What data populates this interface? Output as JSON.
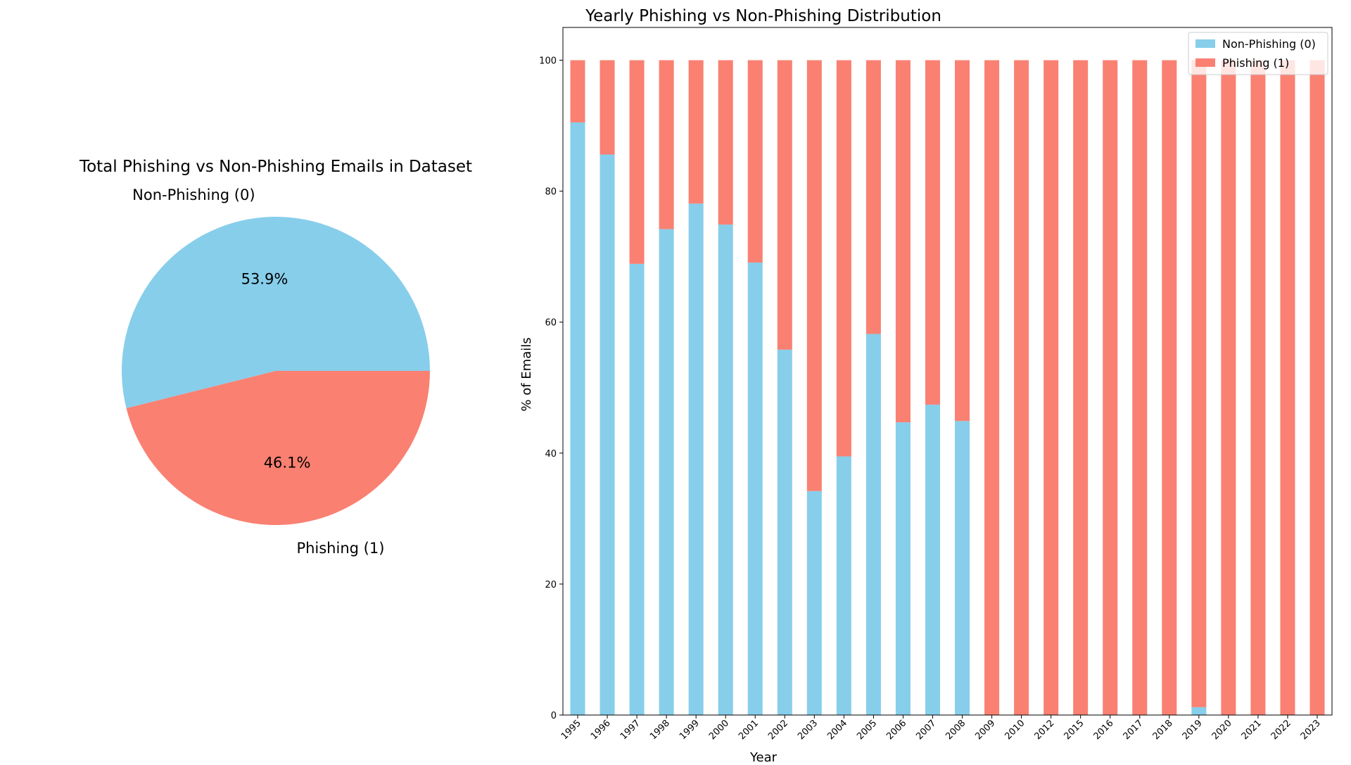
{
  "colors": {
    "non_phishing": "#87CEEB",
    "phishing": "#FA8072",
    "axis": "#000000",
    "background": "#ffffff"
  },
  "chart_data": [
    {
      "type": "pie",
      "title": "Total Phishing vs Non-Phishing Emails in Dataset",
      "labels": [
        "Non-Phishing (0)",
        "Phishing (1)"
      ],
      "values": [
        53.9,
        46.1
      ],
      "pct_labels": [
        "53.9%",
        "46.1%"
      ],
      "colors": [
        "#87CEEB",
        "#FA8072"
      ],
      "start_angle_deg": 0,
      "direction": "counterclockwise"
    },
    {
      "type": "bar",
      "stacked": true,
      "title": "Yearly Phishing vs Non-Phishing Distribution",
      "xlabel": "Year",
      "ylabel": "% of Emails",
      "ylim": [
        0,
        105
      ],
      "yticks": [
        0,
        20,
        40,
        60,
        80,
        100
      ],
      "grid": false,
      "legend_position": "top-right",
      "categories": [
        "1995",
        "1996",
        "1997",
        "1998",
        "1999",
        "2000",
        "2001",
        "2002",
        "2003",
        "2004",
        "2005",
        "2006",
        "2007",
        "2008",
        "2009",
        "2010",
        "2012",
        "2015",
        "2016",
        "2017",
        "2018",
        "2019",
        "2020",
        "2021",
        "2022",
        "2023"
      ],
      "series": [
        {
          "name": "Non-Phishing (0)",
          "color": "#87CEEB",
          "values": [
            90.5,
            85.6,
            68.9,
            74.2,
            78.1,
            74.9,
            69.1,
            55.8,
            34.2,
            39.5,
            58.2,
            44.7,
            47.4,
            44.9,
            0,
            0,
            0,
            0,
            0,
            0,
            0,
            1.2,
            0,
            0,
            0,
            0
          ]
        },
        {
          "name": "Phishing (1)",
          "color": "#FA8072",
          "values": [
            9.5,
            14.4,
            31.1,
            25.8,
            21.9,
            25.1,
            30.9,
            44.2,
            65.8,
            60.5,
            41.8,
            55.3,
            52.6,
            55.1,
            100,
            100,
            100,
            100,
            100,
            100,
            100,
            98.8,
            100,
            100,
            100,
            100
          ]
        }
      ]
    }
  ]
}
